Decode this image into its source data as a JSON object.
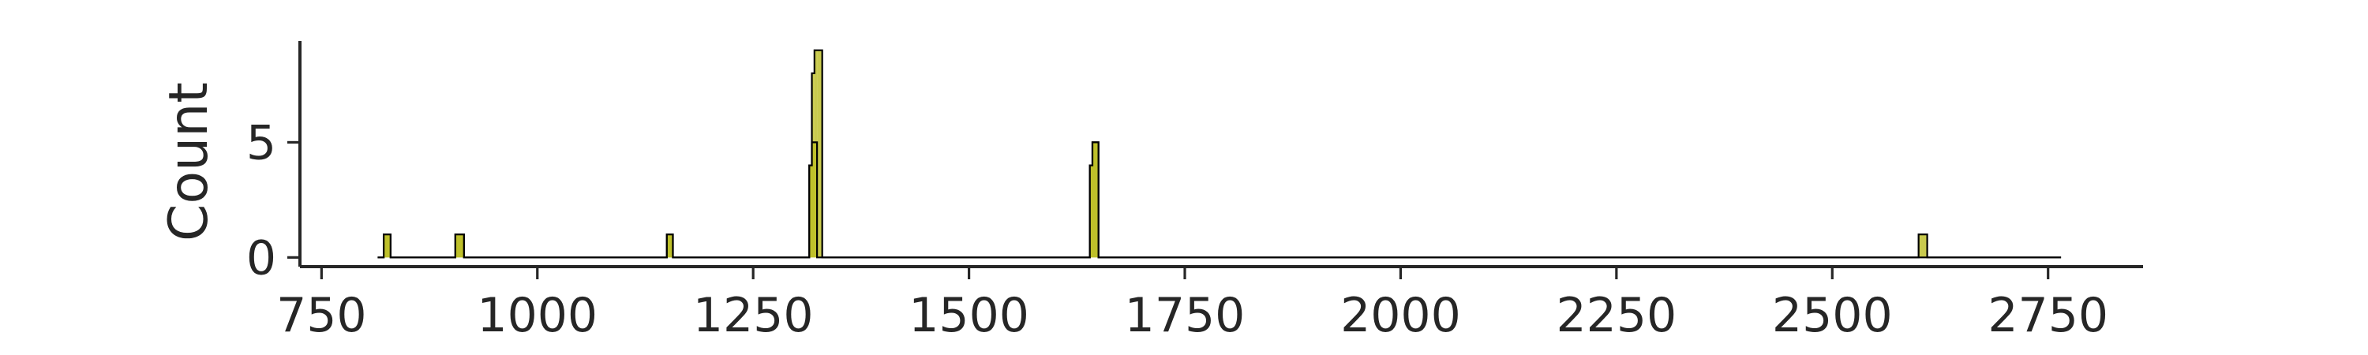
{
  "chart_data": {
    "type": "histogram",
    "ylabel": "Count",
    "xlabel": "",
    "xlim": [
      725,
      2860
    ],
    "ylim": [
      -0.4,
      9.4
    ],
    "xticks": [
      750,
      1000,
      1250,
      1500,
      1750,
      2000,
      2250,
      2500,
      2750
    ],
    "yticks": [
      0,
      5
    ],
    "grid": false,
    "legend": "none",
    "fill_color": "#bcbd22",
    "outline_color": "#000000",
    "series": [
      {
        "values": [
          {
            "x0": 815,
            "x1": 822,
            "y": 0
          },
          {
            "x0": 822,
            "x1": 830,
            "y": 1
          },
          {
            "x0": 830,
            "x1": 905,
            "y": 0
          },
          {
            "x0": 905,
            "x1": 915,
            "y": 1
          },
          {
            "x0": 915,
            "x1": 1150,
            "y": 0
          },
          {
            "x0": 1150,
            "x1": 1157,
            "y": 1
          },
          {
            "x0": 1157,
            "x1": 1315,
            "y": 0
          },
          {
            "x0": 1315,
            "x1": 1318,
            "y": 4
          },
          {
            "x0": 1318,
            "x1": 1321,
            "y": 8
          },
          {
            "x0": 1321,
            "x1": 1324,
            "y": 9
          },
          {
            "x0": 1324,
            "x1": 1330,
            "y": 9
          },
          {
            "x0": 1330,
            "x1": 1640,
            "y": 0
          },
          {
            "x0": 1640,
            "x1": 1643,
            "y": 4
          },
          {
            "x0": 1643,
            "x1": 1650,
            "y": 5
          },
          {
            "x0": 1650,
            "x1": 2600,
            "y": 0
          },
          {
            "x0": 2600,
            "x1": 2610,
            "y": 1
          },
          {
            "x0": 2610,
            "x1": 2765,
            "y": 0
          }
        ]
      },
      {
        "values": [
          {
            "x0": 815,
            "x1": 822,
            "y": 0
          },
          {
            "x0": 822,
            "x1": 830,
            "y": 1
          },
          {
            "x0": 830,
            "x1": 905,
            "y": 0
          },
          {
            "x0": 905,
            "x1": 915,
            "y": 1
          },
          {
            "x0": 915,
            "x1": 1150,
            "y": 0
          },
          {
            "x0": 1150,
            "x1": 1157,
            "y": 1
          },
          {
            "x0": 1157,
            "x1": 1315,
            "y": 0
          },
          {
            "x0": 1315,
            "x1": 1318,
            "y": 4
          },
          {
            "x0": 1318,
            "x1": 1324,
            "y": 5
          },
          {
            "x0": 1324,
            "x1": 1330,
            "y": 0
          },
          {
            "x0": 1330,
            "x1": 1640,
            "y": 0
          },
          {
            "x0": 1640,
            "x1": 1643,
            "y": 4
          },
          {
            "x0": 1643,
            "x1": 1650,
            "y": 5
          },
          {
            "x0": 1650,
            "x1": 2765,
            "y": 0
          }
        ]
      }
    ]
  }
}
